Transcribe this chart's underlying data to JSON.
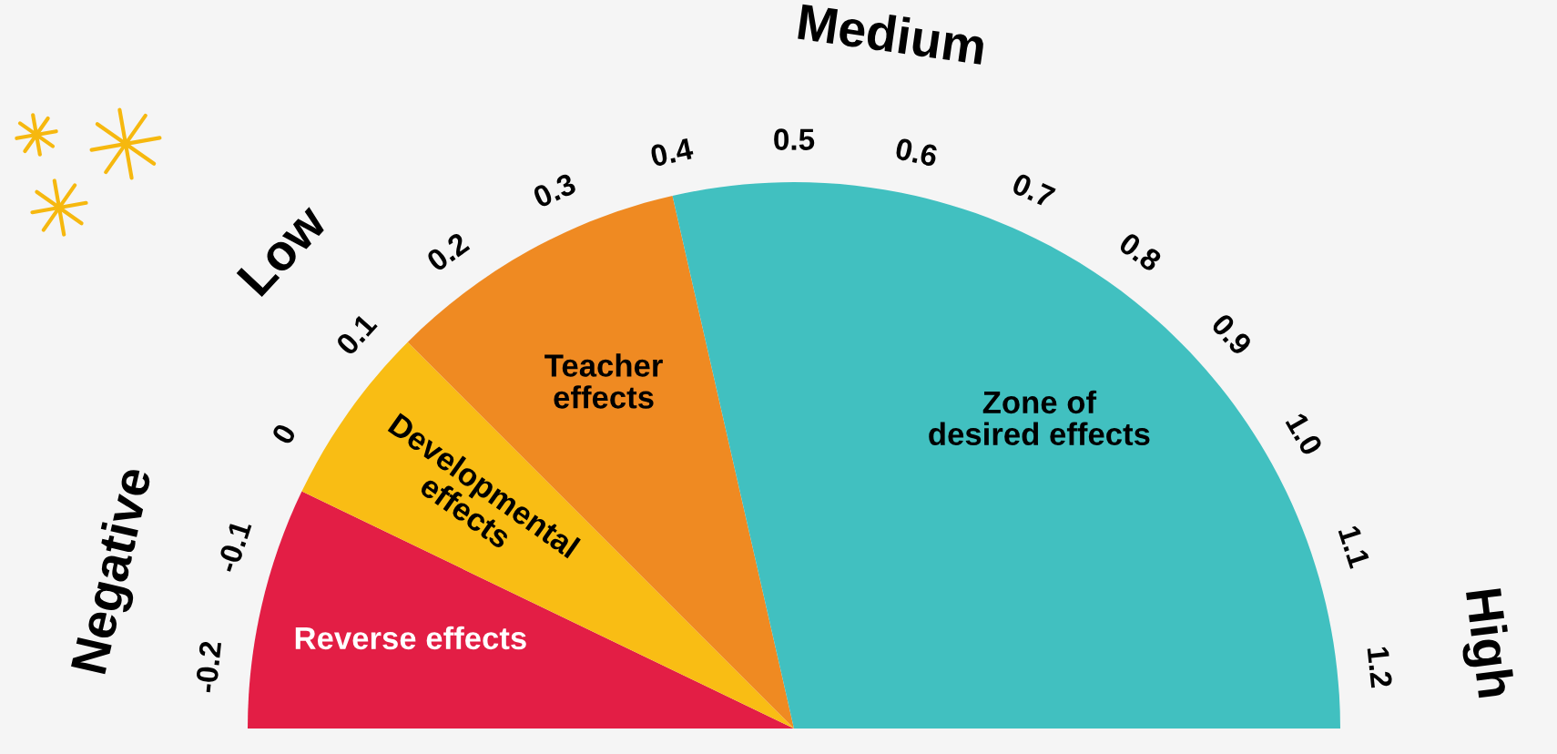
{
  "chart_data": {
    "type": "pie",
    "categories": [
      "Reverse effects",
      "Developmental\neffects",
      "Teacher\neffects",
      "Zone of\ndesired effects"
    ],
    "values": [
      14.29,
      10.71,
      17.86,
      57.14
    ],
    "colors": [
      "#e31e45",
      "#f9bd14",
      "#ef8a22",
      "#41c0c0"
    ],
    "annotations": [
      "-0.2",
      "-0.1",
      "0",
      "0.1",
      "0.2",
      "0.3",
      "0.4",
      "0.5",
      "0.6",
      "0.7",
      "0.8",
      "0.9",
      "1.0",
      "1.1",
      "1.2",
      "Negative",
      "Low",
      "Medium",
      "High"
    ]
  }
}
